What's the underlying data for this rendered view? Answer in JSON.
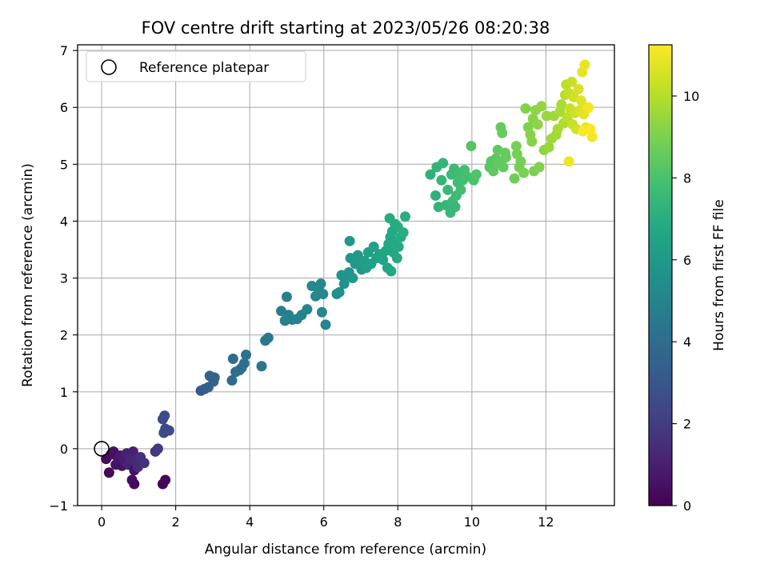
{
  "chart_data": {
    "type": "scatter",
    "title": "FOV centre drift starting at 2023/05/26 08:20:38",
    "xlabel": "Angular distance from reference (arcmin)",
    "ylabel": "Rotation from reference (arcmin)",
    "colorbar_label": "Hours from first FF file",
    "xlim": [
      -0.65,
      13.85
    ],
    "ylim": [
      -1.0,
      7.1
    ],
    "clim": [
      0,
      11.25
    ],
    "xticks": [
      "0",
      "2",
      "4",
      "6",
      "8",
      "10",
      "12"
    ],
    "yticks": [
      "−1",
      "0",
      "1",
      "2",
      "3",
      "4",
      "5",
      "6",
      "7"
    ],
    "cticks": [
      "0",
      "2",
      "4",
      "6",
      "8",
      "10"
    ],
    "grid": true,
    "legend": {
      "placement": "top-left",
      "label": "Reference platepar"
    },
    "colormap": "viridis",
    "reference_point": {
      "x": 0,
      "y": 0
    },
    "points": [
      [
        0.12,
        -0.18,
        0.3
      ],
      [
        0.2,
        -0.42,
        0.2
      ],
      [
        0.25,
        -0.1,
        0.4
      ],
      [
        0.32,
        -0.05,
        0.5
      ],
      [
        0.38,
        -0.28,
        0.6
      ],
      [
        0.45,
        -0.2,
        0.7
      ],
      [
        0.5,
        -0.12,
        0.8
      ],
      [
        0.55,
        -0.3,
        0.5
      ],
      [
        0.62,
        -0.22,
        0.9
      ],
      [
        0.68,
        -0.08,
        1.0
      ],
      [
        0.72,
        -0.28,
        1.1
      ],
      [
        0.78,
        -0.18,
        1.2
      ],
      [
        0.85,
        -0.05,
        1.0
      ],
      [
        0.88,
        -0.38,
        0.6
      ],
      [
        0.92,
        -0.2,
        1.3
      ],
      [
        0.98,
        -0.32,
        1.4
      ],
      [
        1.05,
        -0.15,
        1.5
      ],
      [
        1.15,
        -0.25,
        1.6
      ],
      [
        0.82,
        -0.55,
        0.4
      ],
      [
        0.88,
        -0.62,
        0.3
      ],
      [
        1.45,
        -0.05,
        1.8
      ],
      [
        1.52,
        0.0,
        1.9
      ],
      [
        1.65,
        -0.62,
        0.1
      ],
      [
        1.72,
        -0.55,
        0.2
      ],
      [
        1.65,
        0.52,
        2.5
      ],
      [
        1.7,
        0.58,
        2.6
      ],
      [
        1.72,
        0.35,
        2.4
      ],
      [
        1.68,
        0.28,
        2.5
      ],
      [
        1.82,
        0.32,
        2.4
      ],
      [
        2.68,
        1.02,
        3.2
      ],
      [
        2.78,
        1.05,
        3.3
      ],
      [
        2.88,
        1.08,
        3.4
      ],
      [
        2.92,
        1.28,
        3.5
      ],
      [
        3.02,
        1.18,
        3.6
      ],
      [
        3.05,
        1.25,
        3.5
      ],
      [
        3.52,
        1.2,
        3.9
      ],
      [
        3.55,
        1.58,
        4.0
      ],
      [
        3.62,
        1.35,
        4.0
      ],
      [
        3.72,
        1.38,
        4.1
      ],
      [
        3.78,
        1.42,
        4.0
      ],
      [
        3.85,
        1.5,
        4.1
      ],
      [
        3.9,
        1.65,
        4.2
      ],
      [
        4.32,
        1.45,
        4.4
      ],
      [
        4.42,
        1.9,
        4.5
      ],
      [
        4.5,
        1.95,
        4.5
      ],
      [
        4.85,
        2.42,
        4.7
      ],
      [
        4.95,
        2.25,
        4.8
      ],
      [
        5.0,
        2.67,
        4.9
      ],
      [
        5.05,
        2.35,
        4.8
      ],
      [
        5.15,
        2.27,
        4.9
      ],
      [
        5.28,
        2.28,
        5.0
      ],
      [
        5.4,
        2.35,
        5.0
      ],
      [
        5.55,
        2.45,
        5.1
      ],
      [
        5.68,
        2.86,
        5.2
      ],
      [
        5.78,
        2.68,
        5.2
      ],
      [
        5.85,
        2.82,
        5.3
      ],
      [
        5.92,
        2.9,
        5.2
      ],
      [
        5.98,
        2.72,
        5.3
      ],
      [
        5.95,
        2.4,
        5.2
      ],
      [
        6.05,
        2.18,
        5.1
      ],
      [
        6.35,
        2.72,
        5.6
      ],
      [
        6.42,
        2.75,
        5.6
      ],
      [
        6.48,
        3.05,
        5.7
      ],
      [
        6.55,
        2.9,
        5.7
      ],
      [
        6.6,
        3.05,
        5.8
      ],
      [
        6.68,
        3.1,
        5.8
      ],
      [
        6.72,
        3.35,
        5.9
      ],
      [
        6.7,
        3.65,
        6.0
      ],
      [
        6.78,
        3.0,
        5.9
      ],
      [
        6.85,
        3.25,
        6.0
      ],
      [
        6.92,
        3.4,
        6.0
      ],
      [
        7.02,
        3.15,
        6.1
      ],
      [
        7.1,
        3.3,
        6.2
      ],
      [
        7.15,
        3.18,
        6.2
      ],
      [
        7.2,
        3.45,
        6.3
      ],
      [
        7.28,
        3.25,
        6.3
      ],
      [
        7.35,
        3.55,
        6.4
      ],
      [
        7.42,
        3.35,
        6.4
      ],
      [
        7.5,
        3.42,
        6.5
      ],
      [
        7.6,
        3.32,
        6.5
      ],
      [
        7.68,
        3.48,
        6.6
      ],
      [
        7.72,
        3.18,
        6.6
      ],
      [
        7.75,
        3.6,
        6.7
      ],
      [
        7.8,
        3.72,
        6.7
      ],
      [
        7.85,
        3.82,
        6.8
      ],
      [
        7.88,
        3.45,
        6.7
      ],
      [
        7.95,
        3.62,
        6.8
      ],
      [
        8.0,
        3.9,
        6.9
      ],
      [
        8.02,
        3.55,
        6.8
      ],
      [
        7.78,
        4.05,
        6.9
      ],
      [
        7.92,
        3.95,
        6.9
      ],
      [
        8.08,
        3.72,
        6.9
      ],
      [
        8.15,
        3.8,
        7.0
      ],
      [
        8.2,
        4.08,
        7.0
      ],
      [
        7.82,
        3.12,
        6.7
      ],
      [
        7.98,
        3.35,
        6.8
      ],
      [
        8.88,
        4.82,
        7.2
      ],
      [
        9.02,
        4.45,
        7.2
      ],
      [
        9.05,
        4.95,
        7.3
      ],
      [
        9.1,
        4.25,
        7.3
      ],
      [
        9.18,
        4.72,
        7.4
      ],
      [
        9.22,
        5.02,
        7.4
      ],
      [
        9.3,
        4.28,
        7.4
      ],
      [
        9.35,
        4.55,
        7.5
      ],
      [
        9.42,
        4.15,
        7.5
      ],
      [
        9.45,
        4.82,
        7.6
      ],
      [
        9.48,
        4.35,
        7.6
      ],
      [
        9.52,
        4.92,
        7.6
      ],
      [
        9.58,
        4.45,
        7.7
      ],
      [
        9.62,
        4.68,
        7.7
      ],
      [
        9.65,
        4.85,
        7.7
      ],
      [
        9.7,
        4.55,
        7.8
      ],
      [
        9.75,
        4.72,
        7.8
      ],
      [
        9.8,
        4.9,
        7.8
      ],
      [
        9.88,
        4.78,
        7.9
      ],
      [
        9.55,
        4.25,
        7.5
      ],
      [
        10.05,
        4.72,
        8.0
      ],
      [
        10.12,
        4.82,
        8.1
      ],
      [
        9.98,
        5.32,
        8.2
      ],
      [
        10.48,
        4.95,
        8.3
      ],
      [
        10.52,
        5.05,
        8.3
      ],
      [
        10.58,
        4.88,
        8.4
      ],
      [
        10.65,
        5.1,
        8.4
      ],
      [
        10.7,
        5.25,
        8.5
      ],
      [
        10.72,
        5.02,
        8.5
      ],
      [
        10.78,
        5.65,
        8.6
      ],
      [
        10.82,
        5.55,
        8.6
      ],
      [
        10.85,
        4.95,
        8.5
      ],
      [
        10.9,
        5.2,
        8.6
      ],
      [
        10.92,
        5.12,
        8.6
      ],
      [
        11.15,
        4.75,
        8.8
      ],
      [
        11.2,
        5.32,
        8.9
      ],
      [
        11.22,
        5.18,
        8.9
      ],
      [
        11.28,
        4.95,
        8.9
      ],
      [
        11.32,
        5.05,
        8.9
      ],
      [
        11.4,
        4.85,
        9.0
      ],
      [
        11.45,
        5.98,
        9.1
      ],
      [
        11.52,
        5.65,
        9.1
      ],
      [
        11.58,
        5.52,
        9.2
      ],
      [
        11.62,
        5.4,
        9.2
      ],
      [
        11.65,
        5.8,
        9.2
      ],
      [
        11.68,
        4.88,
        9.0
      ],
      [
        11.72,
        5.95,
        9.3
      ],
      [
        11.78,
        5.7,
        9.3
      ],
      [
        11.82,
        4.95,
        9.1
      ],
      [
        11.88,
        6.02,
        9.4
      ],
      [
        11.95,
        5.25,
        9.4
      ],
      [
        12.02,
        5.85,
        9.5
      ],
      [
        12.08,
        5.3,
        9.5
      ],
      [
        12.15,
        5.45,
        9.6
      ],
      [
        12.22,
        5.85,
        9.6
      ],
      [
        12.28,
        5.52,
        9.7
      ],
      [
        12.32,
        5.62,
        9.7
      ],
      [
        12.38,
        5.92,
        9.8
      ],
      [
        12.42,
        6.05,
        9.8
      ],
      [
        12.48,
        5.72,
        9.9
      ],
      [
        12.52,
        6.22,
        10.0
      ],
      [
        12.55,
        6.4,
        10.1
      ],
      [
        12.58,
        5.82,
        10.1
      ],
      [
        12.62,
        6.25,
        10.2
      ],
      [
        12.65,
        5.98,
        10.3
      ],
      [
        12.7,
        6.45,
        10.3
      ],
      [
        12.72,
        5.7,
        10.3
      ],
      [
        12.75,
        6.18,
        10.4
      ],
      [
        12.78,
        5.9,
        10.4
      ],
      [
        12.82,
        5.62,
        10.5
      ],
      [
        12.88,
        6.32,
        10.6
      ],
      [
        12.92,
        5.95,
        10.6
      ],
      [
        12.95,
        6.12,
        10.7
      ],
      [
        12.98,
        6.62,
        10.8
      ],
      [
        13.02,
        5.88,
        10.8
      ],
      [
        13.05,
        6.75,
        10.9
      ],
      [
        13.08,
        5.65,
        11.0
      ],
      [
        13.12,
        5.98,
        11.0
      ],
      [
        13.15,
        6.0,
        11.1
      ],
      [
        13.2,
        5.62,
        11.2
      ],
      [
        13.25,
        5.48,
        11.1
      ],
      [
        12.62,
        5.05,
        11.0
      ],
      [
        13.0,
        5.58,
        11.2
      ]
    ]
  }
}
